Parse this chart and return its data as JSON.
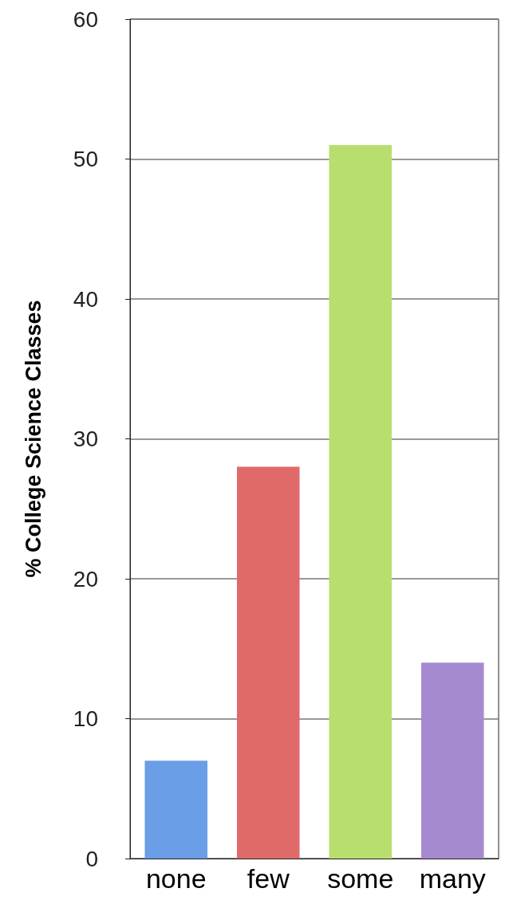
{
  "chart_data": {
    "type": "bar",
    "ylabel": "% College Science Classes",
    "categories": [
      "none",
      "few",
      "some",
      "many"
    ],
    "values": [
      7,
      28,
      51,
      14
    ],
    "colors": [
      "#6a9ee6",
      "#e06a6a",
      "#b8de6e",
      "#a68ad0"
    ],
    "ylim": [
      0,
      60
    ],
    "yticks": [
      0,
      10,
      20,
      30,
      40,
      50,
      60
    ],
    "grid": "y"
  }
}
